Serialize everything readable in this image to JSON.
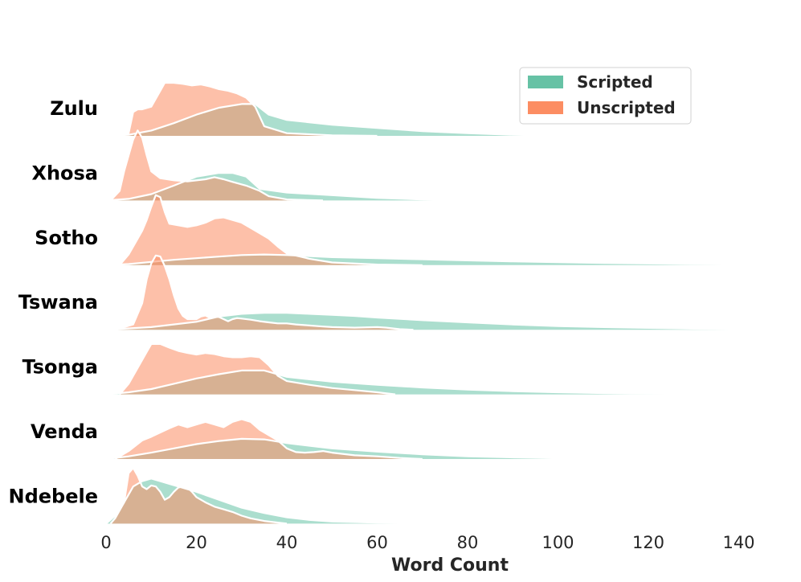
{
  "chart_data": {
    "type": "area",
    "chart_kind": "ridgeline",
    "title": "",
    "xlabel": "Word Count",
    "ylabel": "",
    "xlim": [
      0,
      152
    ],
    "x_ticks": [
      0,
      20,
      40,
      60,
      80,
      100,
      120,
      140
    ],
    "legend": {
      "placement": "top-right",
      "entries": [
        {
          "name": "Scripted",
          "color": "#66c2a5"
        },
        {
          "name": "Unscripted",
          "color": "#fc8d62"
        }
      ]
    },
    "colors": {
      "scripted": "#66c2a5",
      "unscripted": "#fc8d62",
      "outline": "#ffffff"
    },
    "rows": [
      {
        "language": "Zulu",
        "scripted": [
          [
            0,
            0
          ],
          [
            5,
            0.02
          ],
          [
            10,
            0.1
          ],
          [
            15,
            0.24
          ],
          [
            20,
            0.4
          ],
          [
            25,
            0.53
          ],
          [
            30,
            0.6
          ],
          [
            33,
            0.6
          ],
          [
            36,
            0.4
          ],
          [
            40,
            0.3
          ],
          [
            50,
            0.21
          ],
          [
            60,
            0.15
          ],
          [
            70,
            0.09
          ],
          [
            80,
            0.05
          ],
          [
            90,
            0.02
          ],
          [
            100,
            0.005
          ],
          [
            110,
            0
          ]
        ],
        "unscripted": [
          [
            3,
            0
          ],
          [
            5,
            0.05
          ],
          [
            6,
            0.45
          ],
          [
            7,
            0.5
          ],
          [
            8,
            0.5
          ],
          [
            10,
            0.55
          ],
          [
            12,
            0.85
          ],
          [
            13,
            1.0
          ],
          [
            15,
            1.0
          ],
          [
            17,
            0.98
          ],
          [
            19,
            0.95
          ],
          [
            21,
            0.97
          ],
          [
            23,
            0.93
          ],
          [
            25,
            0.88
          ],
          [
            27,
            0.85
          ],
          [
            29,
            0.8
          ],
          [
            31,
            0.72
          ],
          [
            33,
            0.55
          ],
          [
            35,
            0.18
          ],
          [
            40,
            0.05
          ],
          [
            50,
            0.01
          ],
          [
            60,
            0
          ]
        ]
      },
      {
        "language": "Xhosa",
        "scripted": [
          [
            0,
            0
          ],
          [
            5,
            0.03
          ],
          [
            10,
            0.12
          ],
          [
            15,
            0.28
          ],
          [
            20,
            0.45
          ],
          [
            25,
            0.52
          ],
          [
            28,
            0.52
          ],
          [
            31,
            0.45
          ],
          [
            34,
            0.22
          ],
          [
            40,
            0.15
          ],
          [
            50,
            0.1
          ],
          [
            60,
            0.05
          ],
          [
            70,
            0.02
          ],
          [
            80,
            0.005
          ],
          [
            93,
            0
          ]
        ],
        "unscripted": [
          [
            1,
            0
          ],
          [
            3,
            0.18
          ],
          [
            4,
            0.55
          ],
          [
            5,
            0.85
          ],
          [
            6,
            1.15
          ],
          [
            7,
            1.32
          ],
          [
            8,
            1.18
          ],
          [
            9,
            0.85
          ],
          [
            10,
            0.55
          ],
          [
            12,
            0.42
          ],
          [
            15,
            0.38
          ],
          [
            18,
            0.36
          ],
          [
            22,
            0.4
          ],
          [
            24,
            0.44
          ],
          [
            26,
            0.4
          ],
          [
            28,
            0.35
          ],
          [
            31,
            0.28
          ],
          [
            34,
            0.18
          ],
          [
            36,
            0.08
          ],
          [
            40,
            0.02
          ],
          [
            48,
            0
          ]
        ]
      },
      {
        "language": "Sotho",
        "scripted": [
          [
            0,
            0
          ],
          [
            5,
            0.02
          ],
          [
            10,
            0.06
          ],
          [
            15,
            0.1
          ],
          [
            20,
            0.13
          ],
          [
            25,
            0.16
          ],
          [
            30,
            0.19
          ],
          [
            35,
            0.2
          ],
          [
            40,
            0.19
          ],
          [
            50,
            0.15
          ],
          [
            60,
            0.13
          ],
          [
            70,
            0.11
          ],
          [
            80,
            0.09
          ],
          [
            90,
            0.07
          ],
          [
            100,
            0.055
          ],
          [
            110,
            0.04
          ],
          [
            120,
            0.03
          ],
          [
            130,
            0.02
          ],
          [
            140,
            0.01
          ],
          [
            150,
            0.003
          ],
          [
            152,
            0
          ]
        ],
        "unscripted": [
          [
            3,
            0
          ],
          [
            5,
            0.2
          ],
          [
            7,
            0.5
          ],
          [
            8,
            0.65
          ],
          [
            9,
            0.85
          ],
          [
            10,
            1.1
          ],
          [
            11,
            1.32
          ],
          [
            12,
            1.28
          ],
          [
            13,
            1.0
          ],
          [
            14,
            0.78
          ],
          [
            16,
            0.75
          ],
          [
            18,
            0.72
          ],
          [
            20,
            0.75
          ],
          [
            22,
            0.8
          ],
          [
            24,
            0.88
          ],
          [
            26,
            0.9
          ],
          [
            28,
            0.85
          ],
          [
            30,
            0.8
          ],
          [
            32,
            0.7
          ],
          [
            34,
            0.6
          ],
          [
            36,
            0.5
          ],
          [
            38,
            0.35
          ],
          [
            40,
            0.22
          ],
          [
            45,
            0.12
          ],
          [
            50,
            0.05
          ],
          [
            60,
            0.01
          ],
          [
            70,
            0
          ]
        ]
      },
      {
        "language": "Tswana",
        "scripted": [
          [
            0,
            0
          ],
          [
            10,
            0.05
          ],
          [
            20,
            0.15
          ],
          [
            25,
            0.25
          ],
          [
            30,
            0.3
          ],
          [
            35,
            0.32
          ],
          [
            40,
            0.32
          ],
          [
            45,
            0.3
          ],
          [
            50,
            0.28
          ],
          [
            55,
            0.26
          ],
          [
            60,
            0.23
          ],
          [
            70,
            0.18
          ],
          [
            80,
            0.14
          ],
          [
            90,
            0.1
          ],
          [
            100,
            0.07
          ],
          [
            110,
            0.05
          ],
          [
            120,
            0.035
          ],
          [
            130,
            0.02
          ],
          [
            140,
            0.01
          ],
          [
            152,
            0
          ]
        ],
        "unscripted": [
          [
            2,
            0
          ],
          [
            6,
            0.1
          ],
          [
            8,
            0.5
          ],
          [
            9,
            0.95
          ],
          [
            10,
            1.25
          ],
          [
            11,
            1.4
          ],
          [
            12,
            1.38
          ],
          [
            13,
            1.2
          ],
          [
            14,
            0.95
          ],
          [
            15,
            0.65
          ],
          [
            16,
            0.4
          ],
          [
            17,
            0.26
          ],
          [
            18,
            0.2
          ],
          [
            20,
            0.2
          ],
          [
            21,
            0.25
          ],
          [
            22,
            0.27
          ],
          [
            23,
            0.22
          ],
          [
            24,
            0.25
          ],
          [
            25,
            0.24
          ],
          [
            26,
            0.2
          ],
          [
            27,
            0.16
          ],
          [
            28,
            0.2
          ],
          [
            29,
            0.22
          ],
          [
            30,
            0.21
          ],
          [
            32,
            0.19
          ],
          [
            34,
            0.16
          ],
          [
            36,
            0.14
          ],
          [
            38,
            0.12
          ],
          [
            40,
            0.12
          ],
          [
            42,
            0.1
          ],
          [
            45,
            0.08
          ],
          [
            48,
            0.06
          ],
          [
            50,
            0.05
          ],
          [
            55,
            0.04
          ],
          [
            60,
            0.05
          ],
          [
            62,
            0.04
          ],
          [
            65,
            0.01
          ],
          [
            68,
            0
          ]
        ]
      },
      {
        "language": "Tsonga",
        "scripted": [
          [
            0,
            0
          ],
          [
            5,
            0.04
          ],
          [
            10,
            0.1
          ],
          [
            15,
            0.2
          ],
          [
            20,
            0.3
          ],
          [
            25,
            0.38
          ],
          [
            30,
            0.45
          ],
          [
            35,
            0.45
          ],
          [
            40,
            0.33
          ],
          [
            50,
            0.24
          ],
          [
            60,
            0.18
          ],
          [
            70,
            0.13
          ],
          [
            80,
            0.09
          ],
          [
            90,
            0.06
          ],
          [
            100,
            0.04
          ],
          [
            110,
            0.025
          ],
          [
            120,
            0.015
          ],
          [
            130,
            0.005
          ],
          [
            133,
            0
          ]
        ],
        "unscripted": [
          [
            3,
            0
          ],
          [
            5,
            0.2
          ],
          [
            7,
            0.5
          ],
          [
            9,
            0.8
          ],
          [
            10,
            0.95
          ],
          [
            12,
            0.95
          ],
          [
            14,
            0.88
          ],
          [
            16,
            0.82
          ],
          [
            18,
            0.78
          ],
          [
            20,
            0.75
          ],
          [
            22,
            0.78
          ],
          [
            24,
            0.76
          ],
          [
            26,
            0.72
          ],
          [
            28,
            0.7
          ],
          [
            30,
            0.7
          ],
          [
            32,
            0.72
          ],
          [
            34,
            0.7
          ],
          [
            36,
            0.55
          ],
          [
            38,
            0.35
          ],
          [
            40,
            0.25
          ],
          [
            45,
            0.18
          ],
          [
            50,
            0.12
          ],
          [
            55,
            0.08
          ],
          [
            60,
            0.04
          ],
          [
            64,
            0
          ]
        ]
      },
      {
        "language": "Venda",
        "scripted": [
          [
            0,
            0
          ],
          [
            5,
            0.05
          ],
          [
            10,
            0.12
          ],
          [
            15,
            0.2
          ],
          [
            20,
            0.28
          ],
          [
            25,
            0.34
          ],
          [
            30,
            0.38
          ],
          [
            35,
            0.37
          ],
          [
            40,
            0.3
          ],
          [
            45,
            0.25
          ],
          [
            50,
            0.2
          ],
          [
            60,
            0.14
          ],
          [
            70,
            0.09
          ],
          [
            80,
            0.05
          ],
          [
            90,
            0.03
          ],
          [
            100,
            0.015
          ],
          [
            110,
            0.008
          ],
          [
            120,
            0.004
          ],
          [
            130,
            0.002
          ],
          [
            140,
            0.003
          ],
          [
            150,
            0.002
          ],
          [
            152,
            0
          ]
        ],
        "unscripted": [
          [
            2,
            0
          ],
          [
            5,
            0.15
          ],
          [
            8,
            0.35
          ],
          [
            10,
            0.42
          ],
          [
            12,
            0.5
          ],
          [
            14,
            0.58
          ],
          [
            16,
            0.65
          ],
          [
            18,
            0.6
          ],
          [
            20,
            0.65
          ],
          [
            22,
            0.7
          ],
          [
            24,
            0.65
          ],
          [
            26,
            0.6
          ],
          [
            28,
            0.7
          ],
          [
            30,
            0.75
          ],
          [
            32,
            0.7
          ],
          [
            34,
            0.55
          ],
          [
            36,
            0.45
          ],
          [
            38,
            0.35
          ],
          [
            40,
            0.2
          ],
          [
            42,
            0.13
          ],
          [
            44,
            0.12
          ],
          [
            46,
            0.13
          ],
          [
            48,
            0.15
          ],
          [
            50,
            0.12
          ],
          [
            55,
            0.07
          ],
          [
            60,
            0.05
          ],
          [
            65,
            0.02
          ],
          [
            70,
            0
          ]
        ]
      },
      {
        "language": "Ndebele",
        "scripted": [
          [
            0,
            0
          ],
          [
            2,
            0.15
          ],
          [
            4,
            0.4
          ],
          [
            6,
            0.7
          ],
          [
            8,
            0.8
          ],
          [
            10,
            0.85
          ],
          [
            12,
            0.8
          ],
          [
            14,
            0.75
          ],
          [
            16,
            0.7
          ],
          [
            20,
            0.6
          ],
          [
            25,
            0.45
          ],
          [
            30,
            0.3
          ],
          [
            35,
            0.2
          ],
          [
            40,
            0.12
          ],
          [
            45,
            0.07
          ],
          [
            50,
            0.04
          ],
          [
            60,
            0.02
          ],
          [
            70,
            0.01
          ],
          [
            85,
            0
          ]
        ],
        "unscripted": [
          [
            1,
            0
          ],
          [
            2,
            0.1
          ],
          [
            4,
            0.4
          ],
          [
            5,
            0.95
          ],
          [
            6,
            1.05
          ],
          [
            7,
            0.9
          ],
          [
            8,
            0.7
          ],
          [
            9,
            0.65
          ],
          [
            10,
            0.72
          ],
          [
            11,
            0.7
          ],
          [
            12,
            0.6
          ],
          [
            13,
            0.45
          ],
          [
            14,
            0.5
          ],
          [
            15,
            0.6
          ],
          [
            16,
            0.68
          ],
          [
            17,
            0.7
          ],
          [
            18,
            0.68
          ],
          [
            19,
            0.6
          ],
          [
            20,
            0.5
          ],
          [
            22,
            0.4
          ],
          [
            24,
            0.32
          ],
          [
            26,
            0.27
          ],
          [
            28,
            0.22
          ],
          [
            30,
            0.15
          ],
          [
            32,
            0.1
          ],
          [
            35,
            0.05
          ],
          [
            38,
            0.02
          ],
          [
            40,
            0
          ]
        ]
      }
    ]
  }
}
